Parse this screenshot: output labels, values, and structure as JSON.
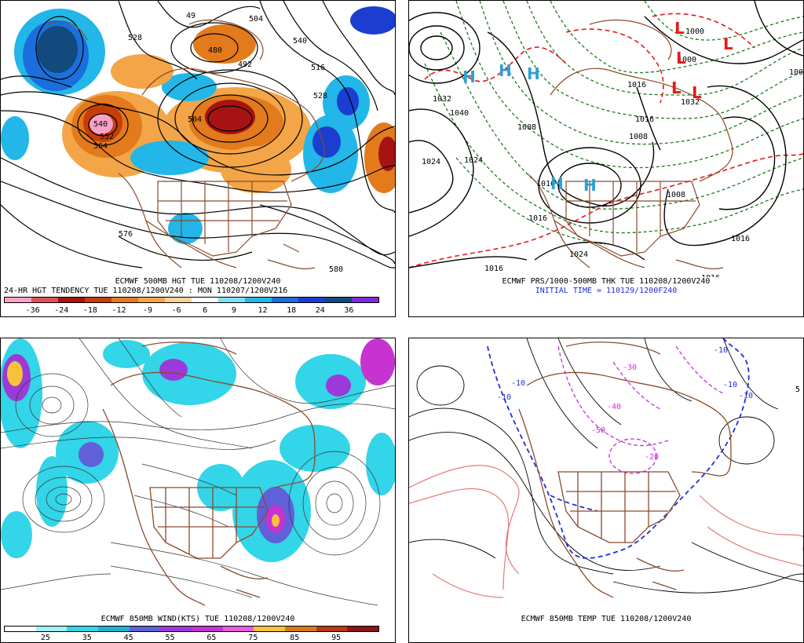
{
  "panels": {
    "top_left": {
      "caption_line1": "ECMWF 500MB HGT TUE 110208/1200V240",
      "caption_line2": "24-HR HGT TENDENCY TUE 110208/1200V240 : MON 110207/1200V216",
      "contour_labels": [
        "528",
        "49",
        "504",
        "540",
        "480",
        "492",
        "516",
        "504",
        "528",
        "540",
        "552",
        "564",
        "576",
        "580"
      ],
      "colorbar": {
        "colors": [
          "#f7a3c8",
          "#e0505a",
          "#a51313",
          "#c53e0a",
          "#e37a1c",
          "#f3a547",
          "#fbd29a",
          "#ffffff",
          "#7fe0f4",
          "#22b7e8",
          "#1a6fdc",
          "#1b3ed0",
          "#134a7e",
          "#7b2bd8"
        ],
        "labels": [
          "-36",
          "-24",
          "-18",
          "-12",
          "-9",
          "-6",
          "6",
          "9",
          "12",
          "18",
          "24",
          "36"
        ]
      }
    },
    "top_right": {
      "caption_line1": "ECMWF PRS/1000-500MB THK TUE 110208/1200V240",
      "caption_line2": "INITIAL TIME = 110129/1200F240",
      "contour_labels": [
        "1032",
        "1040",
        "1024",
        "1016",
        "1016",
        "1024",
        "1016",
        "1008",
        "1000",
        "1016",
        "1008",
        "1008",
        "1016",
        "1024",
        "1032",
        "1016",
        "1000",
        "1000",
        "1016"
      ],
      "center_letters": [
        "H",
        "H",
        "H",
        "H",
        "H",
        "L",
        "L",
        "L",
        "L",
        "L"
      ]
    },
    "bottom_left": {
      "caption_line1": "ECMWF 850MB WIND(KTS) TUE 110208/1200V240",
      "colorbar": {
        "colors": [
          "#ffffff",
          "#9ff5f5",
          "#33d5e8",
          "#1cb4d6",
          "#6060d8",
          "#9b3ad8",
          "#c733d0",
          "#eb5ae0",
          "#f5c23a",
          "#d87a1c",
          "#b83a10",
          "#8c1616"
        ],
        "labels": [
          "25",
          "35",
          "45",
          "55",
          "65",
          "75",
          "85",
          "95"
        ]
      }
    },
    "bottom_right": {
      "caption_line1": "ECMWF 850MB TEMP TUE 110208/1200V240",
      "contour_labels": [
        "-10",
        "-10",
        "-10",
        "-10",
        "-10",
        "-20",
        "-30",
        "-40",
        "-50",
        "5"
      ]
    }
  },
  "colors": {
    "coast": "#8b4a2b",
    "thickness_green": "#1f7a1f",
    "thickness_red": "#e31a1a",
    "high_letter": "#2f9fd6",
    "low_letter": "#e31a1a",
    "freezing_blue": "#1f2fd6",
    "cold_magenta": "#c433d6",
    "warm_salmon": "#e47a7a"
  }
}
